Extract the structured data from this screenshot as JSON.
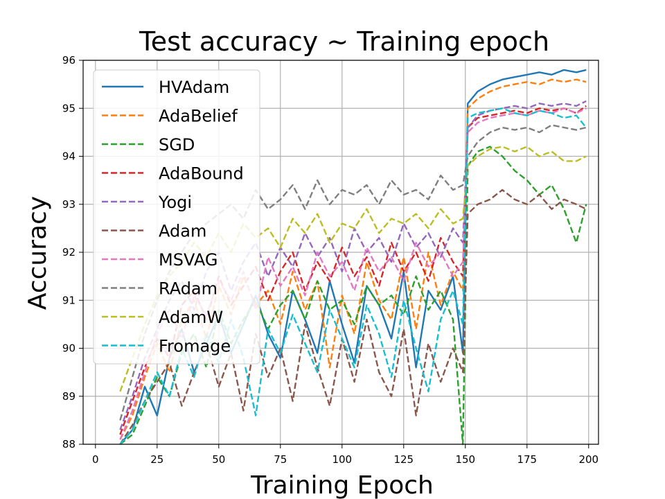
{
  "chart_data": {
    "type": "line",
    "title": "Test accuracy ~ Training epoch",
    "xlabel": "Training Epoch",
    "ylabel": "Accuracy",
    "xlim": [
      -5,
      204
    ],
    "ylim": [
      88,
      96
    ],
    "xticks": [
      0,
      25,
      50,
      75,
      100,
      125,
      150,
      175,
      200
    ],
    "yticks": [
      88,
      89,
      90,
      91,
      92,
      93,
      94,
      95,
      96
    ],
    "grid": true,
    "legend_position": "top-left",
    "x": [
      10,
      15,
      20,
      25,
      30,
      35,
      40,
      45,
      50,
      55,
      60,
      65,
      70,
      75,
      80,
      85,
      90,
      95,
      100,
      105,
      110,
      115,
      120,
      125,
      130,
      135,
      140,
      145,
      149,
      151,
      155,
      160,
      165,
      170,
      175,
      180,
      185,
      190,
      195,
      199
    ],
    "series": [
      {
        "name": "HVAdam",
        "color": "#1f77b4",
        "dash": "solid",
        "values": [
          88.0,
          88.3,
          89.2,
          88.6,
          89.8,
          90.4,
          89.5,
          90.1,
          90.7,
          89.9,
          90.5,
          91.1,
          90.3,
          89.8,
          91.2,
          90.6,
          89.9,
          91.4,
          90.5,
          89.7,
          91.3,
          90.9,
          90.2,
          91.6,
          89.6,
          91.2,
          90.8,
          91.5,
          89.9,
          95.1,
          95.35,
          95.5,
          95.6,
          95.65,
          95.7,
          95.75,
          95.7,
          95.8,
          95.75,
          95.8
        ]
      },
      {
        "name": "AdaBelief",
        "color": "#ff7f0e",
        "dash": "dashed",
        "values": [
          88.1,
          88.6,
          89.4,
          90.1,
          89.5,
          90.6,
          91.0,
          90.2,
          91.3,
          90.7,
          91.5,
          90.9,
          91.2,
          90.5,
          91.6,
          90.8,
          91.4,
          89.6,
          91.1,
          90.3,
          91.8,
          91.0,
          90.6,
          91.9,
          90.4,
          92.0,
          90.9,
          91.6,
          91.2,
          95.0,
          95.2,
          95.35,
          95.45,
          95.5,
          95.55,
          95.5,
          95.6,
          95.55,
          95.6,
          95.55
        ]
      },
      {
        "name": "SGD",
        "color": "#2ca02c",
        "dash": "dashed",
        "values": [
          88.0,
          88.2,
          88.8,
          89.4,
          89.0,
          89.9,
          90.3,
          89.6,
          90.8,
          90.1,
          90.6,
          91.0,
          90.4,
          90.9,
          91.2,
          90.6,
          91.4,
          90.8,
          91.0,
          90.5,
          91.3,
          90.9,
          91.1,
          90.7,
          91.5,
          90.8,
          91.2,
          90.6,
          88.0,
          93.8,
          94.1,
          94.2,
          94.0,
          93.7,
          93.5,
          93.2,
          93.4,
          92.9,
          92.2,
          93.0
        ]
      },
      {
        "name": "AdaBound",
        "color": "#d62728",
        "dash": "dashed",
        "values": [
          88.2,
          88.9,
          89.6,
          90.2,
          89.8,
          90.9,
          91.2,
          90.6,
          91.5,
          90.9,
          91.3,
          91.7,
          91.0,
          91.6,
          92.0,
          91.2,
          91.8,
          91.4,
          92.1,
          91.5,
          91.9,
          91.3,
          92.2,
          91.6,
          92.0,
          91.4,
          92.3,
          91.8,
          91.5,
          94.6,
          94.8,
          94.85,
          94.9,
          94.95,
          94.9,
          95.0,
          94.95,
          95.0,
          94.9,
          95.05
        ]
      },
      {
        "name": "Yogi",
        "color": "#9467bd",
        "dash": "dashed",
        "values": [
          88.3,
          89.0,
          89.8,
          90.4,
          91.0,
          91.4,
          90.8,
          91.6,
          92.0,
          91.2,
          91.8,
          92.2,
          91.5,
          92.1,
          91.7,
          92.4,
          91.9,
          92.3,
          91.6,
          92.5,
          92.0,
          92.3,
          91.8,
          92.6,
          92.1,
          92.4,
          91.9,
          92.5,
          92.2,
          94.6,
          94.85,
          94.95,
          95.0,
          95.05,
          95.0,
          95.1,
          95.05,
          95.1,
          95.05,
          95.15
        ]
      },
      {
        "name": "Adam",
        "color": "#8c564b",
        "dash": "dashed",
        "values": [
          88.0,
          88.4,
          88.9,
          89.3,
          89.7,
          88.8,
          89.5,
          90.1,
          89.2,
          89.9,
          88.7,
          90.3,
          89.4,
          90.0,
          88.9,
          90.5,
          89.6,
          88.8,
          90.2,
          89.3,
          90.6,
          89.5,
          89.0,
          90.4,
          88.6,
          90.1,
          89.3,
          90.0,
          89.5,
          92.8,
          93.0,
          93.1,
          93.3,
          93.1,
          93.0,
          93.2,
          92.9,
          93.1,
          93.0,
          92.9
        ]
      },
      {
        "name": "MSVAG",
        "color": "#e377c2",
        "dash": "dashed",
        "values": [
          88.1,
          88.7,
          89.5,
          90.3,
          90.8,
          90.2,
          91.1,
          90.7,
          91.4,
          91.0,
          91.6,
          90.8,
          91.9,
          91.3,
          91.7,
          91.1,
          92.0,
          91.5,
          91.8,
          91.2,
          92.1,
          91.6,
          91.9,
          91.4,
          92.2,
          91.7,
          92.0,
          91.5,
          91.8,
          94.5,
          94.7,
          94.8,
          94.85,
          94.9,
          94.85,
          94.95,
          94.9,
          95.0,
          94.9,
          95.0
        ]
      },
      {
        "name": "RAdam",
        "color": "#7f7f7f",
        "dash": "dashed",
        "values": [
          88.5,
          89.4,
          90.3,
          91.0,
          91.6,
          92.0,
          92.4,
          92.6,
          92.8,
          93.0,
          92.7,
          93.3,
          92.9,
          93.1,
          93.4,
          92.9,
          93.5,
          93.0,
          93.3,
          93.2,
          93.4,
          93.0,
          93.5,
          93.2,
          93.3,
          93.1,
          93.6,
          93.3,
          93.4,
          94.0,
          94.3,
          94.5,
          94.6,
          94.55,
          94.6,
          94.5,
          94.65,
          94.6,
          94.55,
          94.6
        ]
      },
      {
        "name": "AdamW",
        "color": "#bcbd22",
        "dash": "dashed",
        "values": [
          89.1,
          89.8,
          90.5,
          91.1,
          91.5,
          91.8,
          92.2,
          91.9,
          92.4,
          92.0,
          92.6,
          92.3,
          92.5,
          92.1,
          92.7,
          92.4,
          92.8,
          92.2,
          92.6,
          92.5,
          92.9,
          92.4,
          92.7,
          92.6,
          92.8,
          92.5,
          92.9,
          92.6,
          92.7,
          93.8,
          94.0,
          94.15,
          94.2,
          94.1,
          94.2,
          94.0,
          94.1,
          93.9,
          93.9,
          94.0
        ]
      },
      {
        "name": "Fromage",
        "color": "#17becf",
        "dash": "dashed",
        "values": [
          88.0,
          88.3,
          88.9,
          89.5,
          89.0,
          90.0,
          89.4,
          90.3,
          89.7,
          90.6,
          89.8,
          88.6,
          90.4,
          89.9,
          90.7,
          90.1,
          89.5,
          90.8,
          90.2,
          89.6,
          90.9,
          90.3,
          89.4,
          91.0,
          90.0,
          89.1,
          90.6,
          91.2,
          90.5,
          94.8,
          94.9,
          94.95,
          95.0,
          94.9,
          94.85,
          94.95,
          94.9,
          94.8,
          94.85,
          94.6
        ]
      }
    ]
  }
}
